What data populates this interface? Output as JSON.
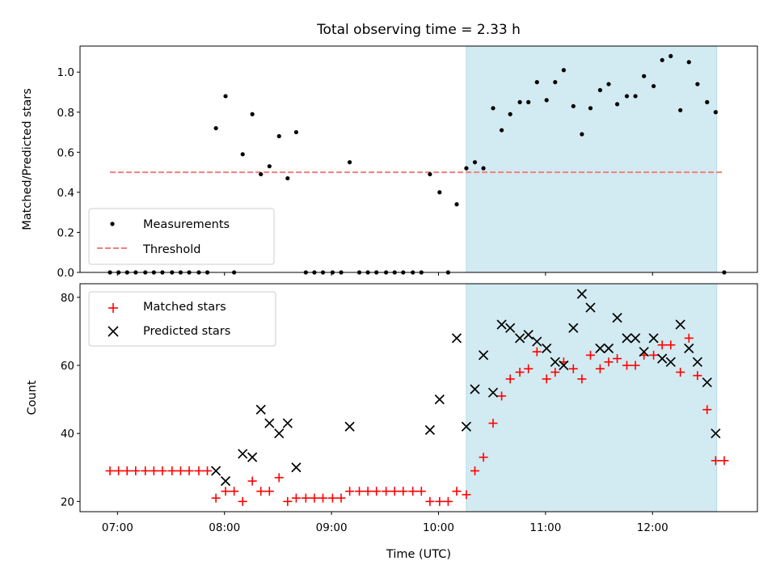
{
  "figure": {
    "title": "Total observing time = 2.33 h",
    "background": "#ffffff"
  },
  "colors": {
    "span_fill": "#add8e6",
    "threshold": "#f08080",
    "measurement": "#000000",
    "matched": "#ff0000",
    "predicted": "#000000"
  },
  "chart_data": [
    {
      "type": "scatter",
      "ylabel": "Matched/Predicted stars",
      "xlabel": "",
      "ylim": [
        0,
        1.13
      ],
      "xlim_hours": [
        6.65,
        12.98
      ],
      "yticks": [
        "0.0",
        "0.2",
        "0.4",
        "0.6",
        "0.8",
        "1.0"
      ],
      "shaded_span_hours": [
        10.26,
        12.6
      ],
      "legend": {
        "position": "lower left",
        "entries": [
          "Measurements",
          "Threshold"
        ]
      },
      "threshold": {
        "name": "Threshold",
        "value": 0.5,
        "x_range_hours": [
          6.93,
          12.67
        ]
      },
      "series": [
        {
          "name": "Measurements",
          "points": [
            [
              6.93,
              0
            ],
            [
              7.01,
              0
            ],
            [
              7.09,
              0
            ],
            [
              7.17,
              0
            ],
            [
              7.26,
              0
            ],
            [
              7.34,
              0
            ],
            [
              7.42,
              0
            ],
            [
              7.51,
              0
            ],
            [
              7.59,
              0
            ],
            [
              7.67,
              0
            ],
            [
              7.76,
              0
            ],
            [
              7.84,
              0
            ],
            [
              7.92,
              0.72
            ],
            [
              8.01,
              0.88
            ],
            [
              8.09,
              0
            ],
            [
              8.17,
              0.59
            ],
            [
              8.26,
              0.79
            ],
            [
              8.34,
              0.49
            ],
            [
              8.42,
              0.53
            ],
            [
              8.51,
              0.68
            ],
            [
              8.59,
              0.47
            ],
            [
              8.67,
              0.7
            ],
            [
              8.76,
              0
            ],
            [
              8.84,
              0
            ],
            [
              8.92,
              0
            ],
            [
              9.01,
              0
            ],
            [
              9.09,
              0
            ],
            [
              9.17,
              0.55
            ],
            [
              9.26,
              0
            ],
            [
              9.34,
              0
            ],
            [
              9.42,
              0
            ],
            [
              9.51,
              0
            ],
            [
              9.59,
              0
            ],
            [
              9.67,
              0
            ],
            [
              9.76,
              0
            ],
            [
              9.84,
              0
            ],
            [
              9.92,
              0.49
            ],
            [
              10.01,
              0.4
            ],
            [
              10.09,
              0
            ],
            [
              10.17,
              0.34
            ],
            [
              10.26,
              0.52
            ],
            [
              10.34,
              0.55
            ],
            [
              10.42,
              0.52
            ],
            [
              10.51,
              0.82
            ],
            [
              10.59,
              0.71
            ],
            [
              10.67,
              0.79
            ],
            [
              10.76,
              0.85
            ],
            [
              10.84,
              0.85
            ],
            [
              10.92,
              0.95
            ],
            [
              11.01,
              0.86
            ],
            [
              11.09,
              0.95
            ],
            [
              11.17,
              1.01
            ],
            [
              11.26,
              0.83
            ],
            [
              11.34,
              0.69
            ],
            [
              11.42,
              0.82
            ],
            [
              11.51,
              0.91
            ],
            [
              11.59,
              0.94
            ],
            [
              11.67,
              0.84
            ],
            [
              11.76,
              0.88
            ],
            [
              11.84,
              0.88
            ],
            [
              11.92,
              0.98
            ],
            [
              12.01,
              0.93
            ],
            [
              12.09,
              1.06
            ],
            [
              12.17,
              1.08
            ],
            [
              12.26,
              0.81
            ],
            [
              12.34,
              1.05
            ],
            [
              12.42,
              0.94
            ],
            [
              12.51,
              0.85
            ],
            [
              12.59,
              0.8
            ],
            [
              12.67,
              0
            ]
          ]
        }
      ]
    },
    {
      "type": "scatter",
      "ylabel": "Count",
      "xlabel": "Time (UTC)",
      "ylim": [
        17,
        84
      ],
      "xlim_hours": [
        6.65,
        12.98
      ],
      "yticks": [
        "20",
        "40",
        "60",
        "80"
      ],
      "xticks": [
        {
          "label": "07:00",
          "hour": 7
        },
        {
          "label": "08:00",
          "hour": 8
        },
        {
          "label": "09:00",
          "hour": 9
        },
        {
          "label": "10:00",
          "hour": 10
        },
        {
          "label": "11:00",
          "hour": 11
        },
        {
          "label": "12:00",
          "hour": 12
        }
      ],
      "shaded_span_hours": [
        10.26,
        12.6
      ],
      "legend": {
        "position": "upper left",
        "entries": [
          "Matched stars",
          "Predicted stars"
        ]
      },
      "series": [
        {
          "name": "Matched stars",
          "marker": "+",
          "points": [
            [
              6.93,
              29
            ],
            [
              7.01,
              29
            ],
            [
              7.09,
              29
            ],
            [
              7.17,
              29
            ],
            [
              7.26,
              29
            ],
            [
              7.34,
              29
            ],
            [
              7.42,
              29
            ],
            [
              7.51,
              29
            ],
            [
              7.59,
              29
            ],
            [
              7.67,
              29
            ],
            [
              7.76,
              29
            ],
            [
              7.84,
              29
            ],
            [
              7.92,
              21
            ],
            [
              8.01,
              23
            ],
            [
              8.09,
              23
            ],
            [
              8.17,
              20
            ],
            [
              8.26,
              26
            ],
            [
              8.34,
              23
            ],
            [
              8.42,
              23
            ],
            [
              8.51,
              27
            ],
            [
              8.59,
              20
            ],
            [
              8.67,
              21
            ],
            [
              8.76,
              21
            ],
            [
              8.84,
              21
            ],
            [
              8.92,
              21
            ],
            [
              9.01,
              21
            ],
            [
              9.09,
              21
            ],
            [
              9.17,
              23
            ],
            [
              9.26,
              23
            ],
            [
              9.34,
              23
            ],
            [
              9.42,
              23
            ],
            [
              9.51,
              23
            ],
            [
              9.59,
              23
            ],
            [
              9.67,
              23
            ],
            [
              9.76,
              23
            ],
            [
              9.84,
              23
            ],
            [
              9.92,
              20
            ],
            [
              10.01,
              20
            ],
            [
              10.09,
              20
            ],
            [
              10.17,
              23
            ],
            [
              10.26,
              22
            ],
            [
              10.34,
              29
            ],
            [
              10.42,
              33
            ],
            [
              10.51,
              43
            ],
            [
              10.59,
              51
            ],
            [
              10.67,
              56
            ],
            [
              10.76,
              58
            ],
            [
              10.84,
              59
            ],
            [
              10.92,
              64
            ],
            [
              11.01,
              56
            ],
            [
              11.09,
              58
            ],
            [
              11.17,
              61
            ],
            [
              11.26,
              59
            ],
            [
              11.34,
              56
            ],
            [
              11.42,
              63
            ],
            [
              11.51,
              59
            ],
            [
              11.59,
              61
            ],
            [
              11.67,
              62
            ],
            [
              11.76,
              60
            ],
            [
              11.84,
              60
            ],
            [
              11.92,
              63
            ],
            [
              12.01,
              63
            ],
            [
              12.09,
              66
            ],
            [
              12.17,
              66
            ],
            [
              12.26,
              58
            ],
            [
              12.34,
              68
            ],
            [
              12.42,
              57
            ],
            [
              12.51,
              47
            ],
            [
              12.59,
              32
            ],
            [
              12.67,
              32
            ]
          ]
        },
        {
          "name": "Predicted stars",
          "marker": "x",
          "points": [
            [
              7.92,
              29
            ],
            [
              8.01,
              26
            ],
            [
              8.17,
              34
            ],
            [
              8.26,
              33
            ],
            [
              8.34,
              47
            ],
            [
              8.42,
              43
            ],
            [
              8.51,
              40
            ],
            [
              8.59,
              43
            ],
            [
              8.67,
              30
            ],
            [
              9.17,
              42
            ],
            [
              9.92,
              41
            ],
            [
              10.01,
              50
            ],
            [
              10.17,
              68
            ],
            [
              10.26,
              42
            ],
            [
              10.34,
              53
            ],
            [
              10.42,
              63
            ],
            [
              10.51,
              52
            ],
            [
              10.59,
              72
            ],
            [
              10.67,
              71
            ],
            [
              10.76,
              68
            ],
            [
              10.84,
              69
            ],
            [
              10.92,
              67
            ],
            [
              11.01,
              65
            ],
            [
              11.09,
              61
            ],
            [
              11.17,
              60
            ],
            [
              11.26,
              71
            ],
            [
              11.34,
              81
            ],
            [
              11.42,
              77
            ],
            [
              11.51,
              65
            ],
            [
              11.59,
              65
            ],
            [
              11.67,
              74
            ],
            [
              11.76,
              68
            ],
            [
              11.84,
              68
            ],
            [
              11.92,
              64
            ],
            [
              12.01,
              68
            ],
            [
              12.09,
              62
            ],
            [
              12.17,
              61
            ],
            [
              12.26,
              72
            ],
            [
              12.34,
              65
            ],
            [
              12.42,
              61
            ],
            [
              12.51,
              55
            ],
            [
              12.59,
              40
            ]
          ]
        }
      ]
    }
  ]
}
